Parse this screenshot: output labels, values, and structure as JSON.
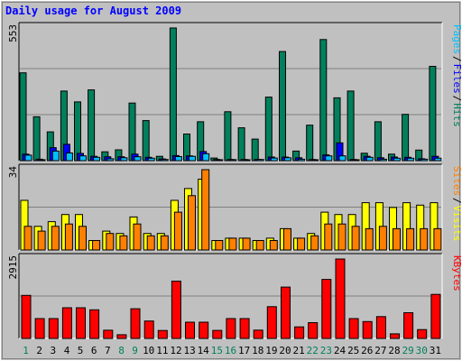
{
  "title": "Daily usage for August 2009",
  "colors": {
    "background": "#c0c0c0",
    "plot_background": "#c0c0c0",
    "grid": "#808080",
    "hits": "#00805c",
    "files": "#0000ff",
    "pages": "#00c0ff",
    "visits": "#ffff00",
    "sites": "#ff8000",
    "kbytes": "#ff0000",
    "title": "#0000ff",
    "weekend_day": "#00805c",
    "weekday": "#000000"
  },
  "chart_data": [
    {
      "type": "bar",
      "panel": "hits-files-pages",
      "y_max_label": "553",
      "ylim": [
        0,
        553
      ],
      "grid": true,
      "legend": [
        "Pages",
        "Files",
        "Hits"
      ],
      "categories": [
        "1",
        "2",
        "3",
        "4",
        "5",
        "6",
        "7",
        "8",
        "9",
        "10",
        "11",
        "12",
        "13",
        "14",
        "15",
        "16",
        "17",
        "18",
        "19",
        "20",
        "21",
        "22",
        "23",
        "24",
        "25",
        "26",
        "27",
        "28",
        "29",
        "30",
        "31"
      ],
      "series": [
        {
          "name": "Hits",
          "values": [
            366,
            183,
            120,
            290,
            245,
            295,
            37,
            45,
            240,
            167,
            18,
            553,
            111,
            162,
            11,
            204,
            137,
            90,
            265,
            455,
            40,
            148,
            505,
            262,
            290,
            31,
            162,
            27,
            193,
            44,
            393
          ]
        },
        {
          "name": "Files",
          "values": [
            27,
            6,
            54,
            68,
            30,
            18,
            16,
            16,
            27,
            14,
            7,
            21,
            20,
            38,
            5,
            5,
            5,
            5,
            15,
            15,
            12,
            5,
            24,
            74,
            5,
            18,
            12,
            15,
            14,
            8,
            18
          ]
        },
        {
          "name": "Pages",
          "values": [
            23,
            3,
            40,
            32,
            20,
            14,
            8,
            12,
            16,
            10,
            5,
            17,
            18,
            29,
            3,
            4,
            3,
            5,
            11,
            12,
            6,
            2,
            20,
            20,
            2,
            14,
            6,
            10,
            10,
            6,
            10
          ]
        }
      ]
    },
    {
      "type": "bar",
      "panel": "visits-sites",
      "y_max_label": "34",
      "ylim": [
        0,
        34
      ],
      "grid": true,
      "legend": [
        "Sites",
        "Visits"
      ],
      "categories": [
        "1",
        "2",
        "3",
        "4",
        "5",
        "6",
        "7",
        "8",
        "9",
        "10",
        "11",
        "12",
        "13",
        "14",
        "15",
        "16",
        "17",
        "18",
        "19",
        "20",
        "21",
        "22",
        "23",
        "24",
        "25",
        "26",
        "27",
        "28",
        "29",
        "30",
        "31"
      ],
      "series": [
        {
          "name": "Visits",
          "values": [
            21,
            10,
            12,
            15,
            15,
            4,
            8,
            7,
            14,
            7,
            7,
            21,
            26,
            30,
            4,
            5,
            5,
            4,
            5,
            9,
            5,
            7,
            16,
            15,
            15,
            20,
            20,
            18,
            20,
            19,
            20
          ]
        },
        {
          "name": "Sites",
          "values": [
            10,
            8,
            10,
            11,
            10,
            4,
            7,
            6,
            11,
            6,
            6,
            16,
            23,
            34,
            4,
            5,
            5,
            4,
            4,
            9,
            5,
            6,
            11,
            11,
            10,
            9,
            10,
            9,
            9,
            9,
            9
          ]
        }
      ]
    },
    {
      "type": "bar",
      "panel": "kbytes",
      "y_max_label": "2915",
      "ylim": [
        0,
        2915
      ],
      "grid": true,
      "legend": [
        "KBytes"
      ],
      "categories": [
        "1",
        "2",
        "3",
        "4",
        "5",
        "6",
        "7",
        "8",
        "9",
        "10",
        "11",
        "12",
        "13",
        "14",
        "15",
        "16",
        "17",
        "18",
        "19",
        "20",
        "21",
        "22",
        "23",
        "24",
        "25",
        "26",
        "27",
        "28",
        "29",
        "30",
        "31"
      ],
      "weekend_days": [
        "1",
        "8",
        "9",
        "15",
        "16",
        "22",
        "23",
        "29",
        "30"
      ],
      "series": [
        {
          "name": "KBytes",
          "values": [
            1580,
            730,
            730,
            1125,
            1125,
            1050,
            300,
            135,
            1090,
            640,
            290,
            2105,
            595,
            595,
            295,
            730,
            730,
            305,
            1165,
            1885,
            425,
            580,
            2165,
            2915,
            730,
            620,
            800,
            170,
            945,
            325,
            1615
          ]
        }
      ]
    }
  ]
}
